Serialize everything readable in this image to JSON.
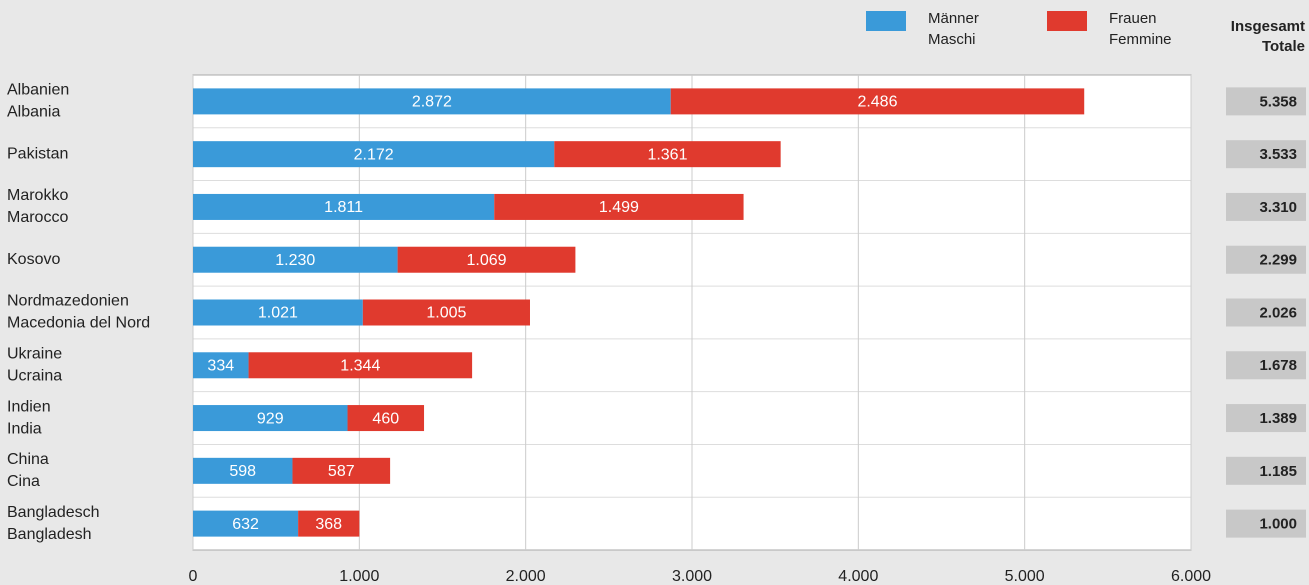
{
  "chart_data": {
    "type": "stacked_barh",
    "categories": [
      [
        "Albanien",
        "Albania"
      ],
      [
        "Pakistan"
      ],
      [
        "Marokko",
        "Marocco"
      ],
      [
        "Kosovo"
      ],
      [
        "Nordmazedonien",
        "Macedonia del Nord"
      ],
      [
        "Ukraine",
        "Ucraina"
      ],
      [
        "Indien",
        "India"
      ],
      [
        "China",
        "Cina"
      ],
      [
        "Bangladesch",
        "Bangladesh"
      ]
    ],
    "series": [
      {
        "name": [
          "Männer",
          "Maschi"
        ],
        "color": "#3a9ad9",
        "values": [
          2872,
          2172,
          1811,
          1230,
          1021,
          334,
          929,
          598,
          632
        ],
        "value_labels": [
          "2.872",
          "2.172",
          "1.811",
          "1.230",
          "1.021",
          "334",
          "929",
          "598",
          "632"
        ]
      },
      {
        "name": [
          "Frauen",
          "Femmine"
        ],
        "color": "#e03a2e",
        "values": [
          2486,
          1361,
          1499,
          1069,
          1005,
          1344,
          460,
          587,
          368
        ],
        "value_labels": [
          "2.486",
          "1.361",
          "1.499",
          "1.069",
          "1.005",
          "1.344",
          "460",
          "587",
          "368"
        ]
      }
    ],
    "totals": {
      "title": [
        "Insgesamt",
        "Totale"
      ],
      "values": [
        5358,
        3533,
        3310,
        2299,
        2026,
        1678,
        1389,
        1185,
        1000
      ],
      "value_labels": [
        "5.358",
        "3.533",
        "3.310",
        "2.299",
        "2.026",
        "1.678",
        "1.389",
        "1.185",
        "1.000"
      ]
    },
    "xlim": [
      0,
      6000
    ],
    "xticks": [
      0,
      {
        "value": 1000,
        "label": "1.000"
      },
      {
        "value": 2000,
        "label": "2.000"
      },
      {
        "value": 3000,
        "label": "3.000"
      },
      {
        "value": 4000,
        "label": "4.000"
      },
      {
        "value": 5000,
        "label": "5.000"
      },
      {
        "value": 6000,
        "label": "6.000"
      }
    ],
    "grid": true
  }
}
